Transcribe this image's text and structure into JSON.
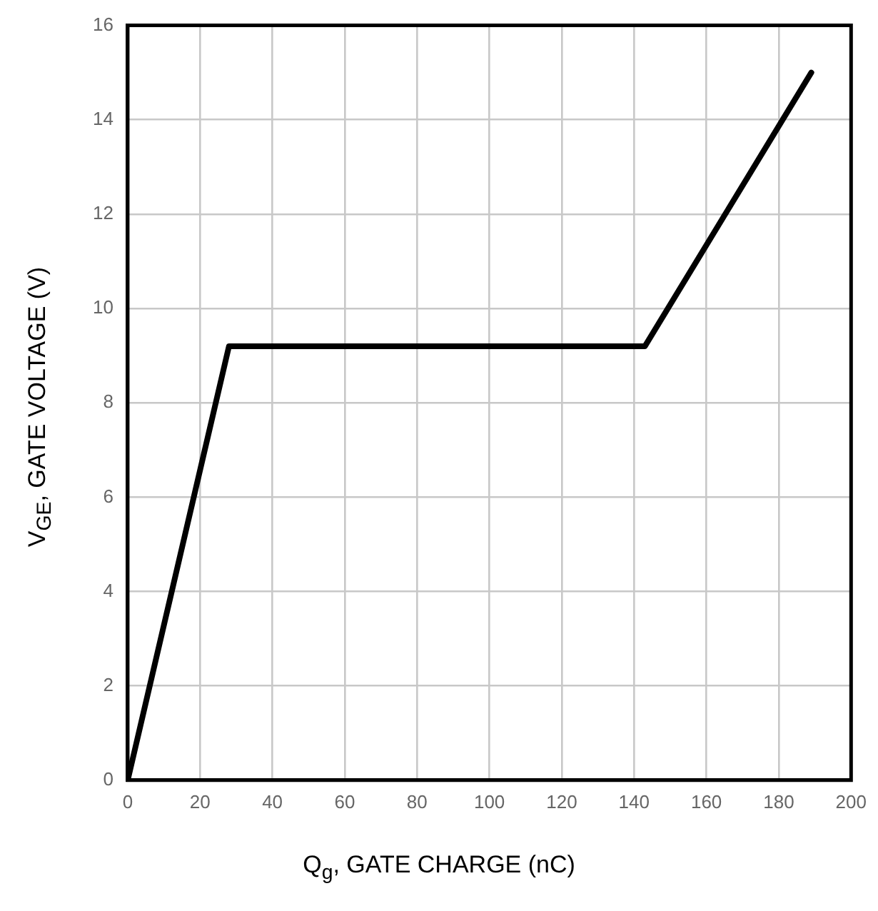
{
  "chart_data": {
    "type": "line",
    "xlabel": "Q$_{g}$, GATE CHARGE (nC)",
    "ylabel": "V$_{GE}$, GATE  VOLTAGE (V)",
    "series": [
      {
        "color": "#000000",
        "x": [
          0,
          28,
          143,
          189
        ],
        "values": [
          0,
          9.2,
          9.2,
          15
        ]
      }
    ],
    "xlim": [
      0,
      200
    ],
    "xticks": [
      0,
      20,
      40,
      60,
      80,
      100,
      120,
      140,
      160,
      180,
      200
    ],
    "ylim": [
      0,
      16
    ],
    "yticks": [
      0,
      2,
      4,
      6,
      8,
      10,
      12,
      14,
      16
    ],
    "grid": true,
    "legend": false,
    "marker": "none",
    "line_style": "solid"
  }
}
